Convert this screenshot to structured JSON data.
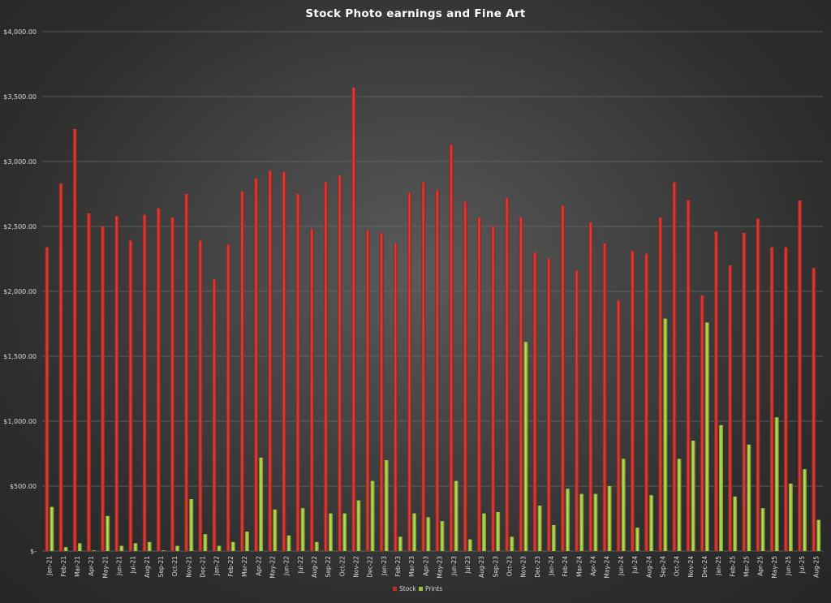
{
  "chart_data": {
    "type": "bar",
    "title": "Stock Photo earnings and Fine Art",
    "xlabel": "",
    "ylabel": "",
    "ylim": [
      0,
      4000
    ],
    "y_tick_values": [
      0,
      500,
      1000,
      1500,
      2000,
      2500,
      3000,
      3500,
      4000
    ],
    "y_tick_labels": [
      "$-",
      "$500.00",
      "$1,000.00",
      "$1,500.00",
      "$2,000.00",
      "$2,500.00",
      "$3,000.00",
      "$3,500.00",
      "$4,000.00"
    ],
    "grid": true,
    "legend_position": "bottom",
    "categories": [
      "Jan-21",
      "Feb-21",
      "Mar-21",
      "Apr-21",
      "May-21",
      "Jun-21",
      "Jul-21",
      "Aug-21",
      "Sep-21",
      "Oct-21",
      "Nov-21",
      "Dec-21",
      "Jan-22",
      "Feb-22",
      "Mar-22",
      "Apr-22",
      "May-22",
      "Jun-22",
      "Jul-22",
      "Aug-22",
      "Sep-22",
      "Oct-22",
      "Nov-22",
      "Dec-22",
      "Jan-23",
      "Feb-23",
      "Mar-23",
      "Apr-23",
      "May-23",
      "Jun-23",
      "Jul-23",
      "Aug-23",
      "Sep-23",
      "Oct-23",
      "Nov-23",
      "Dec-23",
      "Jan-24",
      "Feb-24",
      "Mar-24",
      "Apr-24",
      "May-24",
      "Jun-24",
      "Jul-24",
      "Aug-24",
      "Sep-24",
      "Oct-24",
      "Nov-24",
      "Dec-24",
      "Jan-25",
      "Feb-25",
      "Mar-25",
      "Apr-25",
      "May-25",
      "Jun-25",
      "Jul-25",
      "Aug-25"
    ],
    "series": [
      {
        "name": "Stock",
        "color": "#c0302b",
        "values": [
          2340,
          2830,
          3250,
          2600,
          2500,
          2580,
          2390,
          2590,
          2640,
          2570,
          2750,
          2390,
          2090,
          2360,
          2770,
          2870,
          2930,
          2920,
          2750,
          2480,
          2840,
          2890,
          3570,
          2470,
          2450,
          2370,
          2760,
          2840,
          2780,
          3130,
          2690,
          2570,
          2500,
          2720,
          2570,
          2300,
          2250,
          2660,
          2160,
          2530,
          2370,
          1930,
          2310,
          2290,
          2570,
          2840,
          2700,
          1970,
          2460,
          2200,
          2450,
          2560,
          2340,
          2340,
          2700,
          2180
        ]
      },
      {
        "name": "Prints",
        "color": "#9bc43c",
        "values": [
          340,
          30,
          60,
          5,
          270,
          40,
          60,
          70,
          5,
          40,
          400,
          130,
          40,
          70,
          150,
          720,
          320,
          120,
          330,
          70,
          290,
          290,
          390,
          540,
          700,
          110,
          290,
          260,
          230,
          540,
          90,
          290,
          300,
          110,
          1610,
          350,
          200,
          480,
          440,
          440,
          500,
          710,
          180,
          430,
          1790,
          710,
          850,
          1760,
          970,
          420,
          820,
          330,
          1030,
          520,
          630,
          240
        ]
      }
    ]
  }
}
